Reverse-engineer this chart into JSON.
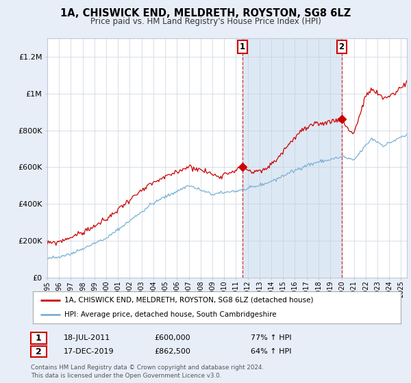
{
  "title": "1A, CHISWICK END, MELDRETH, ROYSTON, SG8 6LZ",
  "subtitle": "Price paid vs. HM Land Registry's House Price Index (HPI)",
  "legend_line1": "1A, CHISWICK END, MELDRETH, ROYSTON, SG8 6LZ (detached house)",
  "legend_line2": "HPI: Average price, detached house, South Cambridgeshire",
  "annotation1_date": "18-JUL-2011",
  "annotation1_price": "£600,000",
  "annotation1_hpi": "77% ↑ HPI",
  "annotation2_date": "17-DEC-2019",
  "annotation2_price": "£862,500",
  "annotation2_hpi": "64% ↑ HPI",
  "footer": "Contains HM Land Registry data © Crown copyright and database right 2024.\nThis data is licensed under the Open Government Licence v3.0.",
  "sale_color": "#cc0000",
  "hpi_color": "#7ab0d4",
  "shade_color": "#dde8f5",
  "background_color": "#e8eef8",
  "plot_bg_color": "#ffffff",
  "ylim": [
    0,
    1300000
  ],
  "yticks": [
    0,
    200000,
    400000,
    600000,
    800000,
    1000000,
    1200000
  ],
  "ytick_labels": [
    "£0",
    "£200K",
    "£400K",
    "£600K",
    "£800K",
    "£1M",
    "£1.2M"
  ],
  "sale1_x": 2011.54,
  "sale1_y": 600000,
  "sale2_x": 2019.96,
  "sale2_y": 862500,
  "xmin": 1995,
  "xmax": 2025.5,
  "xticks": [
    1995,
    1996,
    1997,
    1998,
    1999,
    2000,
    2001,
    2002,
    2003,
    2004,
    2005,
    2006,
    2007,
    2008,
    2009,
    2010,
    2011,
    2012,
    2013,
    2014,
    2015,
    2016,
    2017,
    2018,
    2019,
    2020,
    2021,
    2022,
    2023,
    2024,
    2025
  ]
}
